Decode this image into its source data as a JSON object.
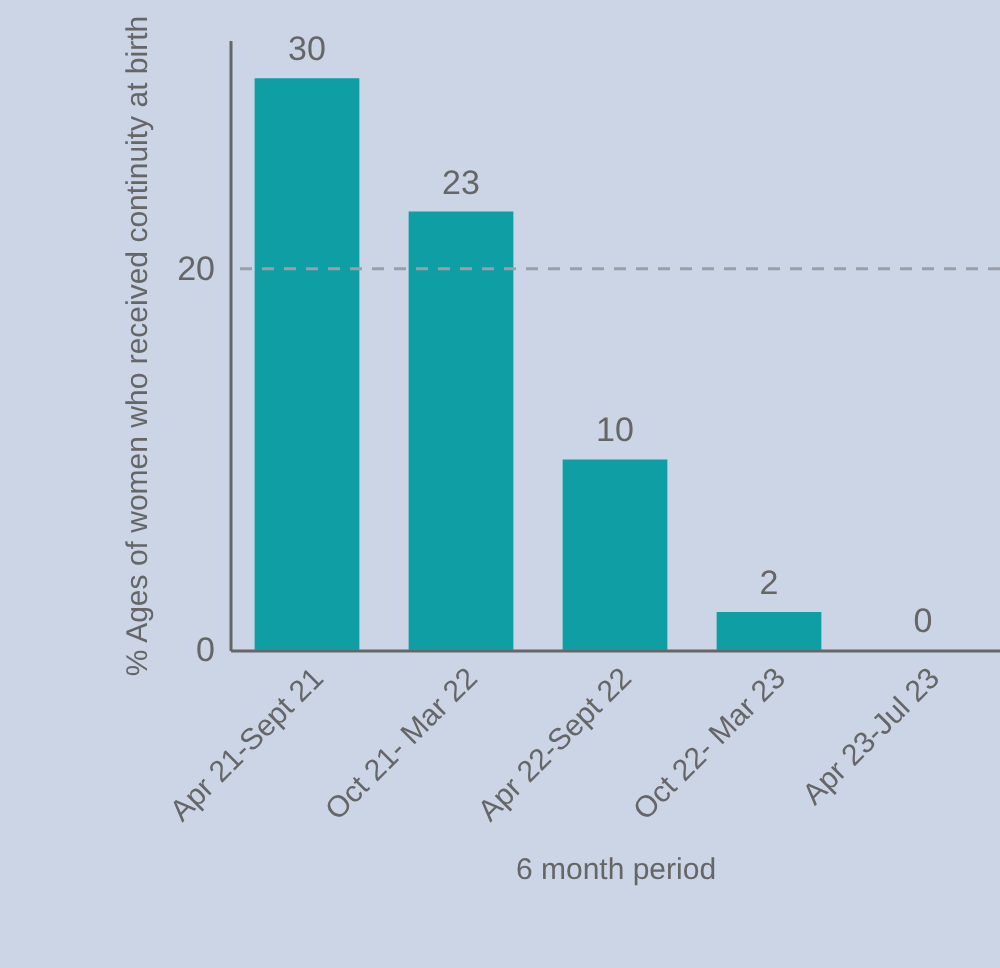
{
  "chart_data": {
    "type": "bar",
    "xlabel": "6 month period",
    "ylabel": "% Ages of women who received continuity at birth",
    "categories": [
      "Apr 21-Sept 21",
      "Oct 21- Mar 22",
      "Apr 22-Sept 22",
      "Oct 22- Mar 23",
      "Apr 23-Jul 23"
    ],
    "values": [
      30,
      23,
      10,
      2,
      0
    ],
    "color": "#0f9ea3",
    "ylim": [
      0,
      32
    ],
    "yticks": [
      0,
      20
    ],
    "data_labels": true,
    "ref_lines": [
      {
        "axis": "y",
        "value": 20,
        "color": "#9aa0a8",
        "line_style": "dashed"
      }
    ]
  }
}
